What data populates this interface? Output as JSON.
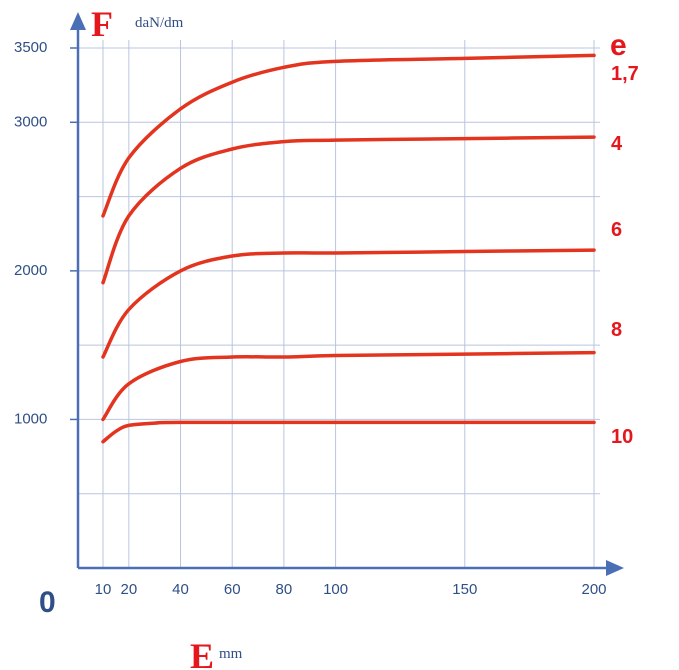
{
  "chart_data": {
    "type": "line",
    "y_axis_symbol": "F",
    "y_unit": "daN/dm",
    "x_axis_symbol": "E",
    "x_unit": "mm",
    "legend_title": "e",
    "origin_label": "0",
    "x_ticks": [
      10,
      20,
      40,
      60,
      80,
      100,
      150,
      200
    ],
    "y_ticks": [
      1000,
      2000,
      3000,
      3500
    ],
    "x_grid": [
      10,
      20,
      40,
      60,
      80,
      100,
      150,
      200
    ],
    "y_grid": [
      500,
      1000,
      1500,
      2000,
      2500,
      3000,
      3500
    ],
    "xlim": [
      0,
      200
    ],
    "ylim": [
      0,
      3500
    ],
    "grid": true,
    "series": [
      {
        "name": "1,7",
        "x": [
          10,
          20,
          40,
          60,
          80,
          100,
          150,
          200
        ],
        "y": [
          2370,
          2760,
          3090,
          3270,
          3370,
          3410,
          3430,
          3450
        ]
      },
      {
        "name": "4",
        "x": [
          10,
          20,
          40,
          60,
          80,
          100,
          150,
          200
        ],
        "y": [
          1920,
          2370,
          2690,
          2820,
          2870,
          2880,
          2890,
          2900
        ]
      },
      {
        "name": "6",
        "x": [
          10,
          20,
          40,
          60,
          80,
          100,
          150,
          200
        ],
        "y": [
          1420,
          1740,
          2000,
          2100,
          2120,
          2120,
          2130,
          2140
        ]
      },
      {
        "name": "8",
        "x": [
          10,
          20,
          40,
          60,
          80,
          100,
          150,
          200
        ],
        "y": [
          1000,
          1240,
          1390,
          1420,
          1420,
          1430,
          1440,
          1450
        ]
      },
      {
        "name": "10",
        "x": [
          10,
          15,
          20,
          30,
          40,
          100,
          150,
          200
        ],
        "y": [
          850,
          920,
          960,
          975,
          980,
          980,
          980,
          980
        ]
      }
    ]
  }
}
